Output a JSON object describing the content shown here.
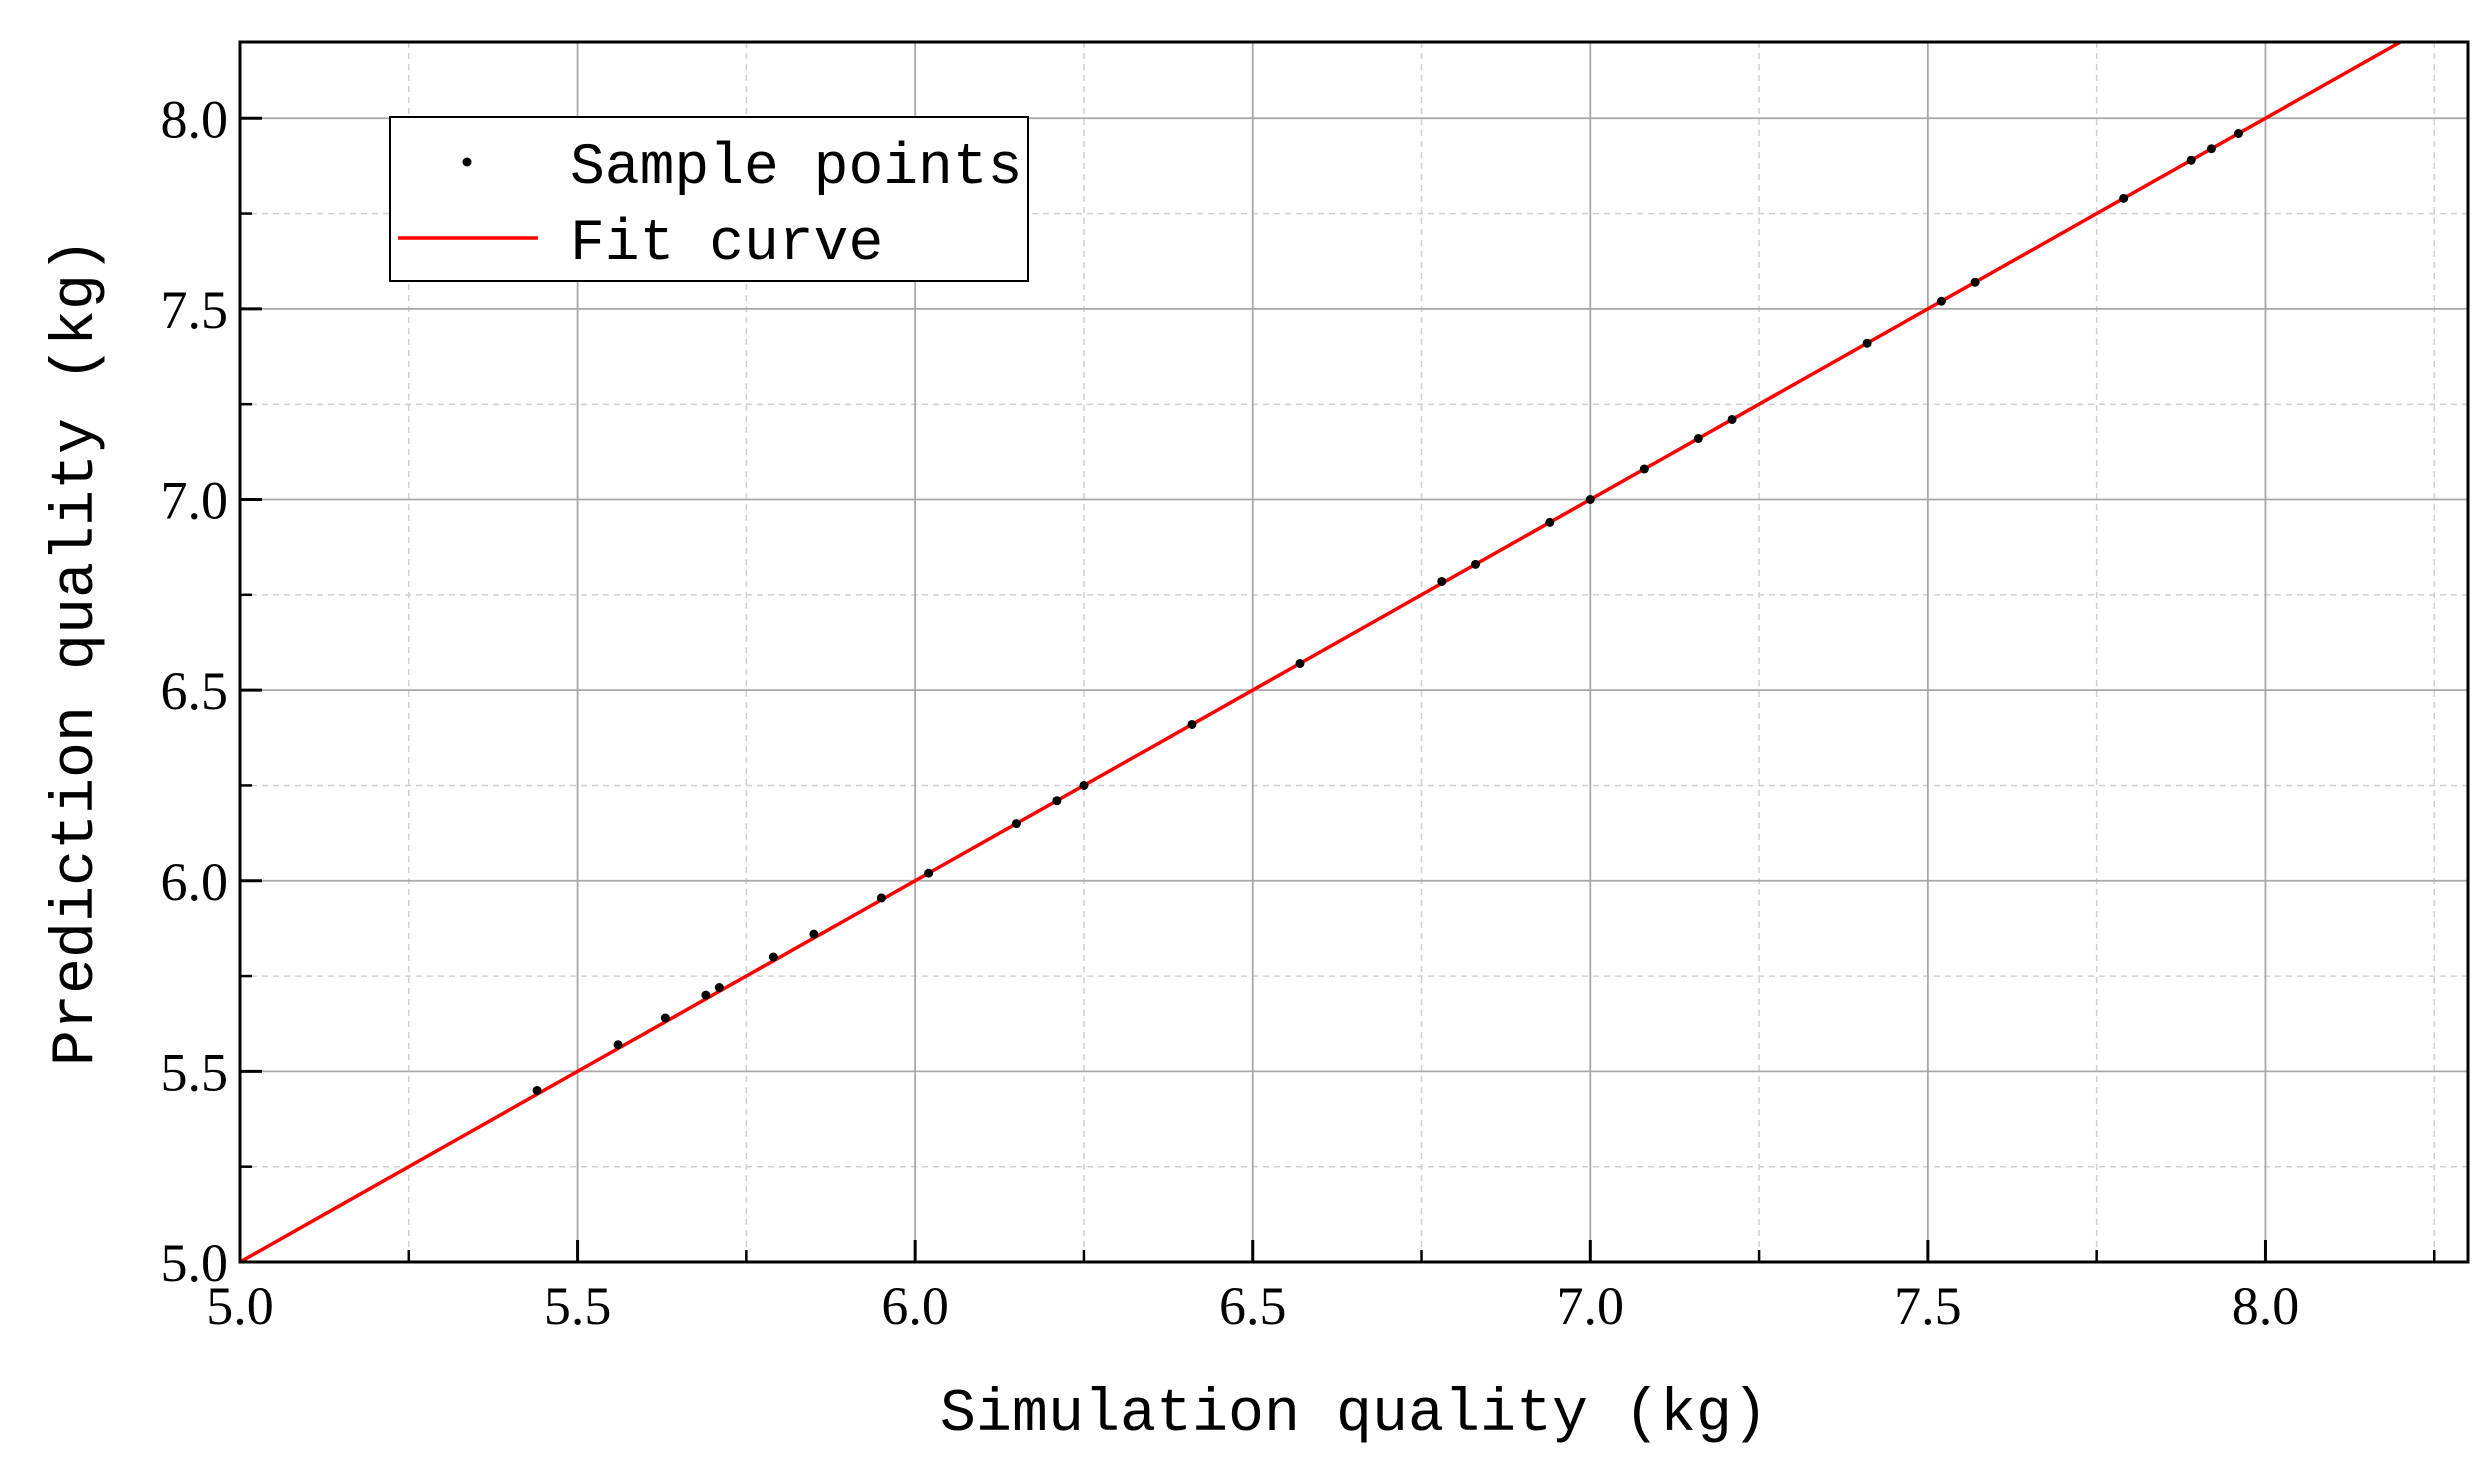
{
  "chart_data": {
    "type": "scatter",
    "title": "",
    "xlabel": "Simulation quality (kg)",
    "ylabel": "Prediction quality (kg)",
    "xlim": [
      5.0,
      8.3
    ],
    "ylim": [
      5.0,
      8.2
    ],
    "x_ticks": [
      "5.0",
      "5.5",
      "6.0",
      "6.5",
      "7.0",
      "7.5",
      "8.0"
    ],
    "y_ticks": [
      "5.0",
      "5.5",
      "6.0",
      "6.5",
      "7.0",
      "7.5",
      "8.0"
    ],
    "grid": true,
    "legend_position": "top-left",
    "series": [
      {
        "name": "Sample points",
        "kind": "points",
        "color": "#000000",
        "points": [
          [
            5.44,
            5.45
          ],
          [
            5.56,
            5.57
          ],
          [
            5.63,
            5.64
          ],
          [
            5.69,
            5.7
          ],
          [
            5.71,
            5.72
          ],
          [
            5.79,
            5.8
          ],
          [
            5.85,
            5.86
          ],
          [
            5.95,
            5.955
          ],
          [
            6.02,
            6.02
          ],
          [
            6.15,
            6.15
          ],
          [
            6.21,
            6.21
          ],
          [
            6.25,
            6.25
          ],
          [
            6.41,
            6.41
          ],
          [
            6.57,
            6.57
          ],
          [
            6.78,
            6.785
          ],
          [
            6.83,
            6.83
          ],
          [
            6.94,
            6.94
          ],
          [
            7.0,
            7.0
          ],
          [
            7.08,
            7.08
          ],
          [
            7.16,
            7.16
          ],
          [
            7.21,
            7.21
          ],
          [
            7.41,
            7.41
          ],
          [
            7.52,
            7.52
          ],
          [
            7.57,
            7.57
          ],
          [
            7.79,
            7.79
          ],
          [
            7.89,
            7.89
          ],
          [
            7.92,
            7.92
          ],
          [
            7.96,
            7.96
          ]
        ]
      },
      {
        "name": "Fit curve",
        "kind": "line",
        "color": "#ff0000",
        "x": [
          5.0,
          8.2
        ],
        "y": [
          5.0,
          8.2
        ]
      }
    ]
  }
}
